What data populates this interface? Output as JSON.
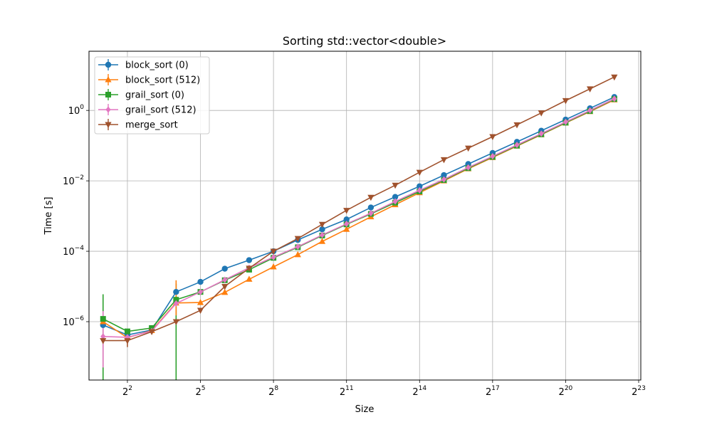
{
  "chart_data": {
    "type": "line",
    "title": "Sorting std::vector<double>",
    "xlabel": "Size",
    "ylabel": "Time [s]",
    "x_scale": "log2",
    "y_scale": "log10",
    "xlim": [
      1.34,
      8912896
    ],
    "ylim": [
      2.2e-08,
      48
    ],
    "x_ticks": [
      4,
      32,
      256,
      2048,
      16384,
      131072,
      1048576,
      8388608
    ],
    "x_tick_labels": [
      {
        "base": "2",
        "exp": "2"
      },
      {
        "base": "2",
        "exp": "5"
      },
      {
        "base": "2",
        "exp": "8"
      },
      {
        "base": "2",
        "exp": "11"
      },
      {
        "base": "2",
        "exp": "14"
      },
      {
        "base": "2",
        "exp": "17"
      },
      {
        "base": "2",
        "exp": "20"
      },
      {
        "base": "2",
        "exp": "23"
      }
    ],
    "y_ticks": [
      1e-06,
      0.0001,
      0.01,
      1
    ],
    "y_tick_labels": [
      {
        "base": "10",
        "exp": "−6"
      },
      {
        "base": "10",
        "exp": "−4"
      },
      {
        "base": "10",
        "exp": "−2"
      },
      {
        "base": "10",
        "exp": "0"
      }
    ],
    "grid": true,
    "legend_position": "top-left",
    "x": [
      2,
      4,
      8,
      16,
      32,
      64,
      128,
      256,
      512,
      1024,
      2048,
      4096,
      8192,
      16384,
      32768,
      65536,
      131072,
      262144,
      524288,
      1048576,
      2097152,
      4194304
    ],
    "series": [
      {
        "name": "block_sort (0)",
        "color": "#1f77b4",
        "marker": "circle",
        "values": [
          8e-07,
          4.2e-07,
          5.8e-07,
          7e-06,
          1.35e-05,
          3.2e-05,
          5.6e-05,
          0.0001,
          0.00021,
          0.00042,
          0.0008,
          0.00175,
          0.0035,
          0.007,
          0.0145,
          0.03,
          0.062,
          0.128,
          0.265,
          0.55,
          1.15,
          2.4
        ]
      },
      {
        "name": "block_sort (512)",
        "color": "#ff7f0e",
        "marker": "triangle-up",
        "values": [
          1e-06,
          3.5e-07,
          5.6e-07,
          3.4e-06,
          3.5e-06,
          6.8e-06,
          1.6e-05,
          3.6e-05,
          8e-05,
          0.00019,
          0.00042,
          0.00095,
          0.0021,
          0.0046,
          0.01,
          0.022,
          0.046,
          0.097,
          0.205,
          0.44,
          0.93,
          2.0
        ]
      },
      {
        "name": "grail_sort (0)",
        "color": "#2ca02c",
        "marker": "square",
        "values": [
          1.2e-06,
          5.3e-07,
          6.6e-07,
          4.2e-06,
          7e-06,
          1.5e-05,
          3e-05,
          6.5e-05,
          0.00013,
          0.00028,
          0.00058,
          0.00115,
          0.0024,
          0.005,
          0.0105,
          0.023,
          0.048,
          0.1,
          0.21,
          0.45,
          0.96,
          2.1
        ]
      },
      {
        "name": "grail_sort (512)",
        "color": "#e377c2",
        "marker": "diamond",
        "values": [
          3.8e-07,
          3.6e-07,
          5.4e-07,
          3.3e-06,
          7e-06,
          1.55e-05,
          3.4e-05,
          6.8e-05,
          0.000135,
          0.00029,
          0.0006,
          0.0012,
          0.0026,
          0.0054,
          0.011,
          0.024,
          0.05,
          0.105,
          0.22,
          0.47,
          1.0,
          2.15
        ]
      },
      {
        "name": "merge_sort",
        "color": "#a0522d",
        "marker": "triangle-down",
        "values": [
          2.9e-07,
          2.9e-07,
          5.2e-07,
          1e-06,
          2.1e-06,
          1e-05,
          3.3e-05,
          0.0001,
          0.00023,
          0.00058,
          0.00145,
          0.0034,
          0.0075,
          0.0175,
          0.04,
          0.085,
          0.18,
          0.39,
          0.85,
          1.9,
          4.1,
          8.9
        ]
      }
    ],
    "error_bars": [
      {
        "series": "grail_sort (0)",
        "x": 2,
        "low": 2.2e-08,
        "high": 6e-06
      },
      {
        "series": "grail_sort (512)",
        "x": 2,
        "low": 5e-08,
        "high": 2e-06
      },
      {
        "series": "grail_sort (0)",
        "x": 16,
        "low": 2.2e-08,
        "high": 1.2e-05
      },
      {
        "series": "block_sort (512)",
        "x": 16,
        "low": 1.5e-06,
        "high": 1.5e-05
      },
      {
        "series": "merge_sort",
        "x": 4,
        "low": 1.9e-07,
        "high": 3.9e-07
      },
      {
        "series": "block_sort (0)",
        "x": 8,
        "low": 4.5e-07,
        "high": 7.5e-07
      }
    ]
  }
}
